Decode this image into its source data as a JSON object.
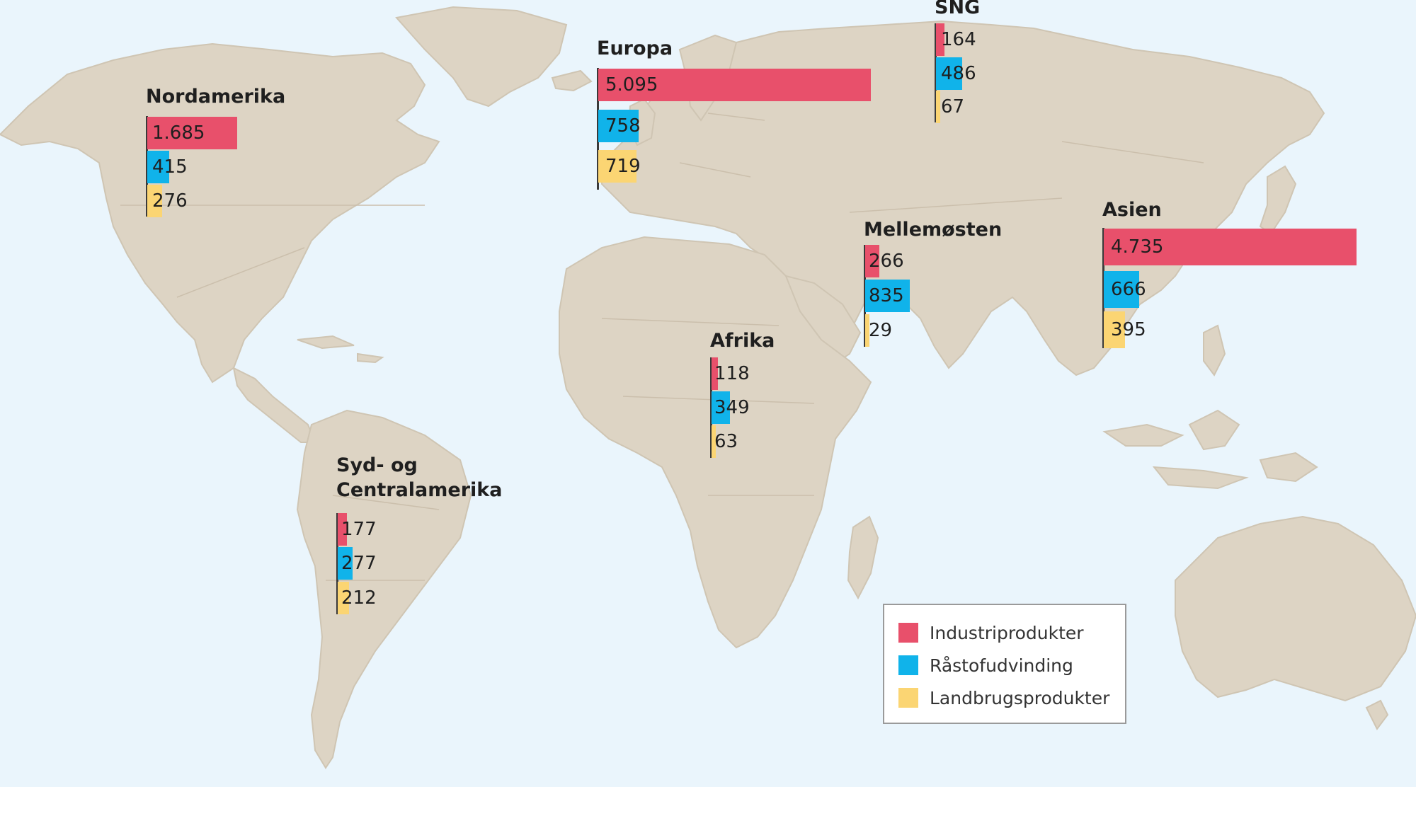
{
  "colors": {
    "industry": "#e8506b",
    "raw_materials": "#10b3ea",
    "agriculture": "#fbd573",
    "land": "#ddd4c4",
    "sea": "#eaf5fc"
  },
  "chart_data": {
    "type": "bar",
    "orientation": "horizontal",
    "series_names": [
      "Industriprodukter",
      "Råstofudvinding",
      "Landbrugsprodukter"
    ],
    "regions": [
      {
        "name": "Nordamerika",
        "labels": [
          "1.685",
          "415",
          "276"
        ],
        "values": [
          1685,
          415,
          276
        ]
      },
      {
        "name": "Europa",
        "labels": [
          "5.095",
          "758",
          "719"
        ],
        "values": [
          5095,
          758,
          719
        ]
      },
      {
        "name": "SNG",
        "labels": [
          "164",
          "486",
          "67"
        ],
        "values": [
          164,
          486,
          67
        ]
      },
      {
        "name": "Mellemøsten",
        "labels": [
          "266",
          "835",
          "29"
        ],
        "values": [
          266,
          835,
          29
        ]
      },
      {
        "name": "Asien",
        "labels": [
          "4.735",
          "666",
          "395"
        ],
        "values": [
          4735,
          666,
          395
        ]
      },
      {
        "name": "Afrika",
        "labels": [
          "118",
          "349",
          "63"
        ],
        "values": [
          118,
          349,
          63
        ]
      },
      {
        "name": "Syd- og\nCentralamerika",
        "labels": [
          "177",
          "277",
          "212"
        ],
        "values": [
          177,
          277,
          212
        ]
      }
    ],
    "legend": {
      "placement": "bottom-right",
      "entries": [
        "Industriprodukter",
        "Råstofudvinding",
        "Landbrugsprodukter"
      ]
    }
  }
}
